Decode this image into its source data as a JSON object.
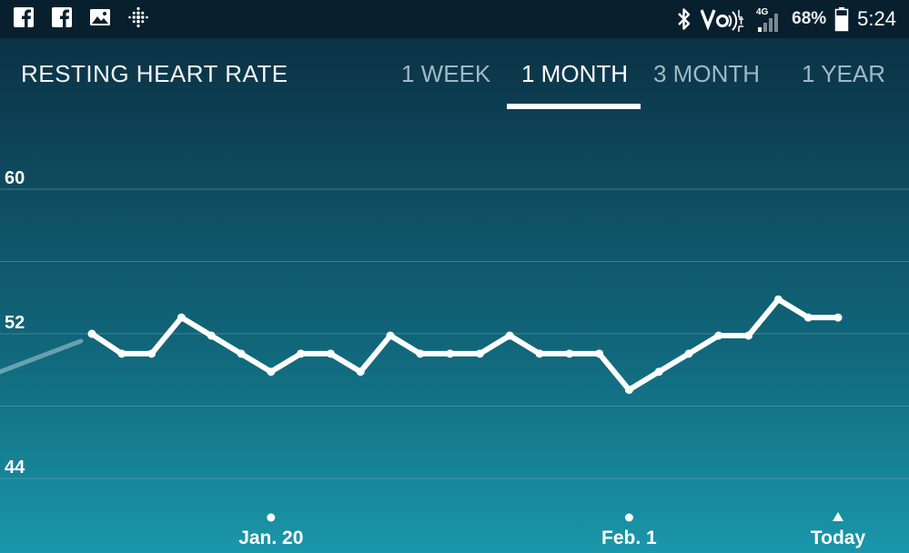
{
  "status_bar": {
    "left_icons": [
      "facebook-icon",
      "facebook-icon",
      "image-icon",
      "fitbit-icon"
    ],
    "right_icons": [
      "bluetooth-icon",
      "volte-icon",
      "signal-icon",
      "battery-icon"
    ],
    "network": "4G",
    "battery": "68%",
    "time": "5:24"
  },
  "header": {
    "title": "RESTING HEART RATE",
    "tabs": [
      {
        "label": "1 WEEK",
        "active": false
      },
      {
        "label": "1 MONTH",
        "active": true
      },
      {
        "label": "3 MONTH",
        "active": false
      },
      {
        "label": "1 YEAR",
        "active": false
      }
    ]
  },
  "colors": {
    "line": "#ffffff",
    "grid": "#6fa3b2",
    "tab_inactive": "#9fb9c4"
  },
  "chart_data": {
    "type": "line",
    "title": "RESTING HEART RATE",
    "ylim": [
      44,
      60
    ],
    "yticks": [
      60,
      52,
      44
    ],
    "grid": true,
    "x_ticks": [
      {
        "label": "Jan. 20",
        "index": 6,
        "marker": "dot"
      },
      {
        "label": "Feb. 1",
        "index": 18,
        "marker": "dot"
      },
      {
        "label": "Today",
        "index": 25,
        "marker": "triangle"
      }
    ],
    "lead_in": [
      49.9,
      51.6
    ],
    "values": [
      52.0,
      50.9,
      50.9,
      52.9,
      51.9,
      50.9,
      49.9,
      50.9,
      50.9,
      49.9,
      51.9,
      50.9,
      50.9,
      50.9,
      51.9,
      50.9,
      50.9,
      50.9,
      48.9,
      49.9,
      50.9,
      51.9,
      51.9,
      53.9,
      52.9,
      52.9
    ]
  }
}
